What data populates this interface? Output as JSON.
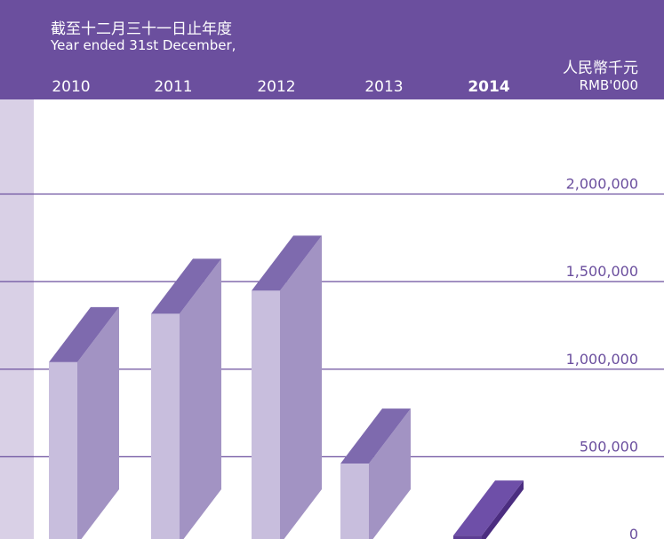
{
  "chart_data": {
    "type": "bar3d",
    "title_zh": "截至十二月三十一日止年度",
    "title": "Year ended 31st December,",
    "unit_zh": "人民幣千元",
    "unit": "RMB'000",
    "categories": [
      "2010",
      "2011",
      "2012",
      "2013",
      "2014"
    ],
    "values": [
      1040000,
      1316000,
      1448000,
      461000,
      50000
    ],
    "highlight": "2014",
    "color": "#c8bedd",
    "highlight_color": "#5d3d94",
    "ylim": [
      0,
      2540000
    ],
    "yticks": [
      0,
      {
        "value": 500000,
        "label": "500,000"
      },
      {
        "value": 1000000,
        "label": "1,000,000"
      },
      {
        "value": 1500000,
        "label": "1,500,000"
      },
      {
        "value": 2000000,
        "label": "2,000,000"
      }
    ],
    "grid": true
  }
}
